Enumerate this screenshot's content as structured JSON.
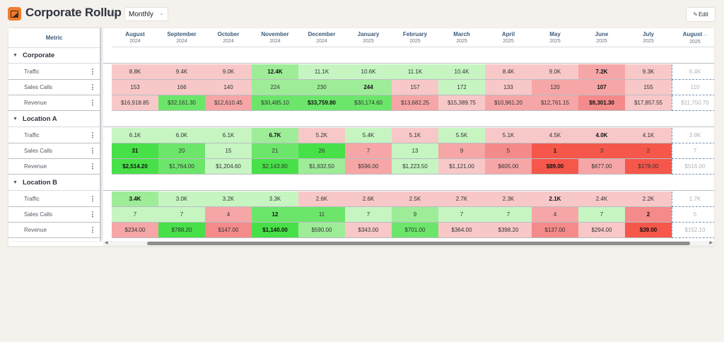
{
  "header": {
    "app_icon": "report-icon",
    "title": "Corporate Rollup",
    "favorite_icon": "star-outline-icon",
    "period_select": {
      "value": "Monthly",
      "icon": "chevron-down-icon"
    },
    "edit_button": {
      "label": "Edit",
      "icon": "pencil-icon"
    }
  },
  "table": {
    "metric_header": "Metric",
    "columns": [
      {
        "month": "August",
        "year": "2024"
      },
      {
        "month": "September",
        "year": "2024"
      },
      {
        "month": "October",
        "year": "2024"
      },
      {
        "month": "November",
        "year": "2024"
      },
      {
        "month": "December",
        "year": "2024"
      },
      {
        "month": "January",
        "year": "2025"
      },
      {
        "month": "February",
        "year": "2025"
      },
      {
        "month": "March",
        "year": "2025"
      },
      {
        "month": "April",
        "year": "2025"
      },
      {
        "month": "May",
        "year": "2025"
      },
      {
        "month": "June",
        "year": "2025"
      },
      {
        "month": "July",
        "year": "2025"
      },
      {
        "month": "August",
        "year": "2025",
        "has_dropdown": true,
        "projected": true
      }
    ],
    "groups": [
      {
        "name": "Corporate",
        "rows": [
          {
            "metric": "Traffic",
            "values": [
              "8.8K",
              "9.4K",
              "9.0K",
              "12.4K",
              "11.1K",
              "10.6K",
              "11.1K",
              "10.4K",
              "8.4K",
              "9.0K",
              "7.2K",
              "9.3K",
              "6.4K"
            ],
            "colors": [
              "#f8c8c8",
              "#f8c8c8",
              "#f8c8c8",
              "#9eec98",
              "#c6f5c2",
              "#c6f5c2",
              "#c6f5c2",
              "#c6f5c2",
              "#f8c8c8",
              "#f8c8c8",
              "#f6a6a6",
              "#f8c8c8",
              ""
            ],
            "bold": [
              3,
              10
            ]
          },
          {
            "metric": "Sales Calls",
            "values": [
              "153",
              "166",
              "140",
              "224",
              "230",
              "244",
              "157",
              "172",
              "133",
              "120",
              "107",
              "155",
              "110"
            ],
            "colors": [
              "#f8c8c8",
              "#f8c8c8",
              "#f8c8c8",
              "#9eec98",
              "#9eec98",
              "#9eec98",
              "#f8c8c8",
              "#c6f5c2",
              "#f8c8c8",
              "#f6a6a6",
              "#f6a6a6",
              "#f8c8c8",
              ""
            ],
            "bold": [
              5,
              10
            ]
          },
          {
            "metric": "Revenue",
            "values": [
              "$16,918.85",
              "$32,161.30",
              "$12,610.45",
              "$30,485.10",
              "$33,759.80",
              "$30,174.60",
              "$13,682.25",
              "$15,389.75",
              "$10,961.20",
              "$12,761.15",
              "$9,301.30",
              "$17,857.55",
              "$11,750.70"
            ],
            "colors": [
              "#f8c8c8",
              "#6ce66a",
              "#f6a6a6",
              "#6ce66a",
              "#6ce66a",
              "#6ce66a",
              "#f6a6a6",
              "#f8c8c8",
              "#f6a6a6",
              "#f6a6a6",
              "#f58a8a",
              "#f8c8c8",
              ""
            ],
            "bold": [
              4,
              10
            ]
          }
        ]
      },
      {
        "name": "Location A",
        "rows": [
          {
            "metric": "Traffic",
            "values": [
              "6.1K",
              "6.0K",
              "6.1K",
              "6.7K",
              "5.2K",
              "5.4K",
              "5.1K",
              "5.5K",
              "5.1K",
              "4.5K",
              "4.0K",
              "4.1K",
              "3.9K"
            ],
            "colors": [
              "#c6f5c2",
              "#c6f5c2",
              "#c6f5c2",
              "#9eec98",
              "#f8c8c8",
              "#c6f5c2",
              "#f8c8c8",
              "#c6f5c2",
              "#f8c8c8",
              "#f8c8c8",
              "#f8c8c8",
              "#f8c8c8",
              ""
            ],
            "bold": [
              3,
              10
            ]
          },
          {
            "metric": "Sales Calls",
            "values": [
              "31",
              "20",
              "15",
              "21",
              "26",
              "7",
              "13",
              "9",
              "5",
              "1",
              "3",
              "2",
              "7"
            ],
            "colors": [
              "#48e048",
              "#6ce66a",
              "#c6f5c2",
              "#6ce66a",
              "#48e048",
              "#f6a6a6",
              "#c6f5c2",
              "#f6a6a6",
              "#f58a8a",
              "#f5574a",
              "#f5574a",
              "#f5574a",
              ""
            ],
            "bold": [
              0,
              9
            ]
          },
          {
            "metric": "Revenue",
            "values": [
              "$2,514.20",
              "$1,764.00",
              "$1,204.60",
              "$2,143.80",
              "$1,632.50",
              "$596.00",
              "$1,223.50",
              "$1,121.00",
              "$605.00",
              "$89.00",
              "$677.00",
              "$178.00",
              "$516.00"
            ],
            "colors": [
              "#48e048",
              "#6ce66a",
              "#c6f5c2",
              "#48e048",
              "#9eec98",
              "#f6a6a6",
              "#c6f5c2",
              "#f8c8c8",
              "#f6a6a6",
              "#f5574a",
              "#f6a6a6",
              "#f5574a",
              ""
            ],
            "bold": [
              0,
              9
            ]
          }
        ]
      },
      {
        "name": "Location B",
        "rows": [
          {
            "metric": "Traffic",
            "values": [
              "3.4K",
              "3.0K",
              "3.2K",
              "3.3K",
              "2.6K",
              "2.6K",
              "2.5K",
              "2.7K",
              "2.3K",
              "2.1K",
              "2.4K",
              "2.2K",
              "1.7K"
            ],
            "colors": [
              "#9eec98",
              "#c6f5c2",
              "#c6f5c2",
              "#c6f5c2",
              "#f8c8c8",
              "#f8c8c8",
              "#f8c8c8",
              "#f8c8c8",
              "#f8c8c8",
              "#f8c8c8",
              "#f8c8c8",
              "#f8c8c8",
              ""
            ],
            "bold": [
              0,
              9
            ]
          },
          {
            "metric": "Sales Calls",
            "values": [
              "7",
              "7",
              "4",
              "12",
              "11",
              "7",
              "9",
              "7",
              "7",
              "4",
              "7",
              "2",
              "5"
            ],
            "colors": [
              "#c6f5c2",
              "#c6f5c2",
              "#f6a6a6",
              "#6ce66a",
              "#6ce66a",
              "#c6f5c2",
              "#9eec98",
              "#c6f5c2",
              "#c6f5c2",
              "#f6a6a6",
              "#c6f5c2",
              "#f58a8a",
              ""
            ],
            "bold": [
              3,
              11
            ]
          },
          {
            "metric": "Revenue",
            "values": [
              "$234.00",
              "$788.20",
              "$147.00",
              "$1,140.00",
              "$590.00",
              "$343.00",
              "$701.00",
              "$364.00",
              "$398.20",
              "$137.00",
              "$294.00",
              "$39.00",
              "$152.10"
            ],
            "colors": [
              "#f6a6a6",
              "#48e048",
              "#f58a8a",
              "#48e048",
              "#9eec98",
              "#f8c8c8",
              "#6ce66a",
              "#f8c8c8",
              "#f8c8c8",
              "#f58a8a",
              "#f8c8c8",
              "#f5574a",
              ""
            ],
            "bold": [
              3,
              11
            ]
          }
        ]
      }
    ]
  },
  "scrollbar": {
    "left_arrow": "◀",
    "right_arrow": "▶"
  }
}
